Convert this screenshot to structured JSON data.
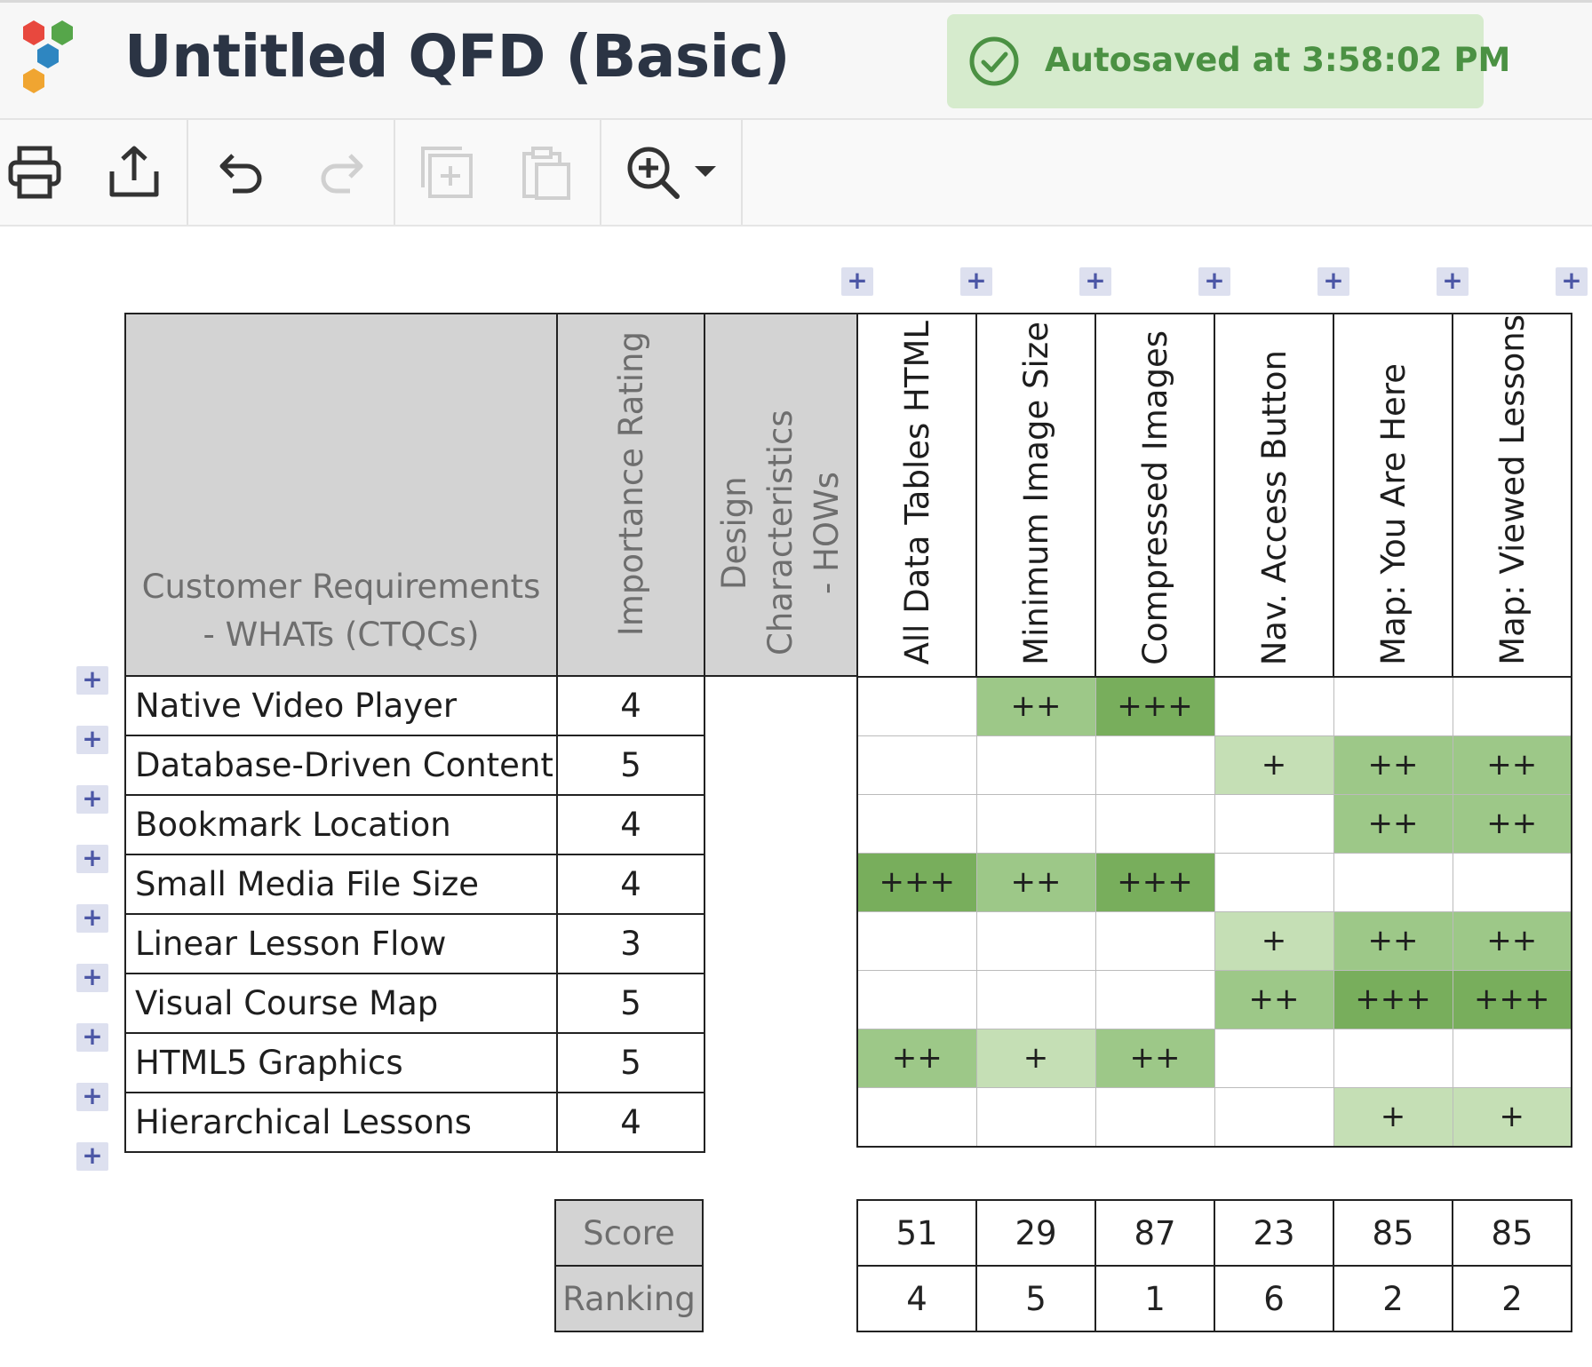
{
  "app": {
    "title": "Untitled QFD (Basic)",
    "autosave_text": "Autosaved at 3:58:02 PM",
    "colors": {
      "accent_text": "#2b3444",
      "autosave_bg": "#d6ebcd",
      "autosave_text": "#4b9143",
      "header_gray": "#d3d3d3"
    }
  },
  "toolbar": {
    "icons": [
      "printer-icon",
      "share-icon",
      "undo-icon",
      "redo-icon",
      "duplicate-icon",
      "paste-icon",
      "zoom-in-icon",
      "caret-down-icon"
    ]
  },
  "matrix": {
    "header_whats": "Customer Requirements - WHATs (CTQCs)",
    "header_importance": "Importance Rating",
    "header_hows": "Design Characteristics - HOWs",
    "add_symbol": "+",
    "hows": [
      "All Data Tables HTML",
      "Minimum Image Size",
      "Compressed Images",
      "Nav. Access Button",
      "Map: You Are Here",
      "Map: Viewed Lessons"
    ],
    "rows": [
      {
        "label": "Native Video Player",
        "importance": "4",
        "cells": [
          "",
          "++",
          "+++",
          "",
          "",
          ""
        ]
      },
      {
        "label": "Database-Driven Content",
        "importance": "5",
        "cells": [
          "",
          "",
          "",
          "+",
          "++",
          "++"
        ]
      },
      {
        "label": "Bookmark Location",
        "importance": "4",
        "cells": [
          "",
          "",
          "",
          "",
          "++",
          "++"
        ]
      },
      {
        "label": "Small Media File Size",
        "importance": "4",
        "cells": [
          "+++",
          "++",
          "+++",
          "",
          "",
          ""
        ]
      },
      {
        "label": "Linear Lesson Flow",
        "importance": "3",
        "cells": [
          "",
          "",
          "",
          "+",
          "++",
          "++"
        ]
      },
      {
        "label": "Visual Course Map",
        "importance": "5",
        "cells": [
          "",
          "",
          "",
          "++",
          "+++",
          "+++"
        ]
      },
      {
        "label": "HTML5 Graphics",
        "importance": "5",
        "cells": [
          "++",
          "+",
          "++",
          "",
          "",
          ""
        ]
      },
      {
        "label": "Hierarchical Lessons",
        "importance": "4",
        "cells": [
          "",
          "",
          "",
          "",
          "+",
          "+"
        ]
      }
    ],
    "relationship_colors": {
      "+": "#c5dfb5",
      "++": "#9dc888",
      "+++": "#78ae5c"
    },
    "score_label": "Score",
    "ranking_label": "Ranking",
    "scores": [
      "51",
      "29",
      "87",
      "23",
      "85",
      "85"
    ],
    "rankings": [
      "4",
      "5",
      "1",
      "6",
      "2",
      "2"
    ]
  }
}
